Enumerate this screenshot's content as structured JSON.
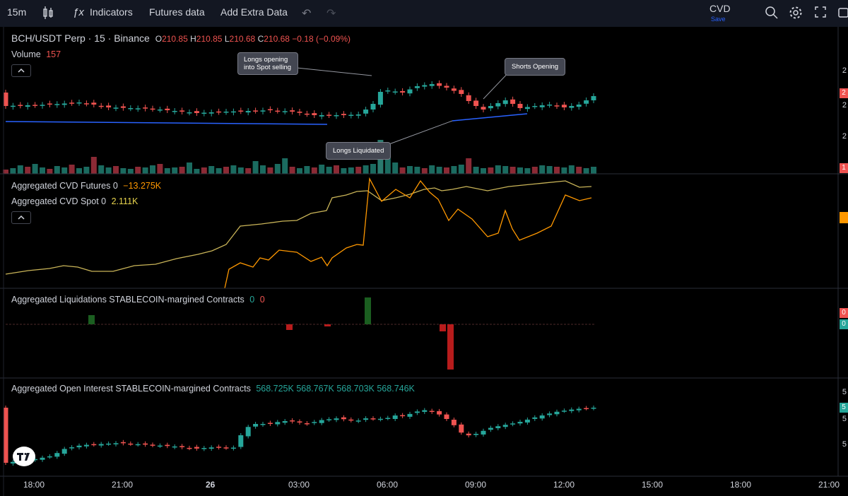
{
  "toolbar": {
    "interval": "15m",
    "indicators": "Indicators",
    "futures_data": "Futures data",
    "add_extra_data": "Add Extra Data",
    "layout_name": "CVD",
    "save_label": "Save"
  },
  "legend": {
    "symbol": "BCH/USDT Perp · 15 · Binance",
    "o_label": "O",
    "o_value": "210.85",
    "h_label": "H",
    "h_value": "210.85",
    "l_label": "L",
    "l_value": "210.68",
    "c_label": "C",
    "c_value": "210.68",
    "change": "−0.18 (−0.09%)",
    "volume_label": "Volume",
    "volume_value": "157"
  },
  "panes": {
    "cvd_futures_label": "Aggregated CVD Futures 0",
    "cvd_futures_value": "−13.275K",
    "cvd_spot_label": "Aggregated CVD Spot 0",
    "cvd_spot_value": "2.111K",
    "liq_label": "Aggregated Liquidations STABLECOIN-margined Contracts",
    "liq_v1": "0",
    "liq_v2": "0",
    "oi_label": "Aggregated Open Interest STABLECOIN-margined Contracts",
    "oi_values": [
      "568.725K",
      "568.767K",
      "568.703K",
      "568.746K"
    ]
  },
  "annotations": {
    "longs_opening": "Longs opening into Spot selling",
    "shorts_opening": "Shorts Opening",
    "longs_liquidated": "Longs Liquidated"
  },
  "time_axis": [
    "18:00",
    "21:00",
    "26",
    "03:00",
    "06:00",
    "09:00",
    "12:00",
    "15:00",
    "18:00",
    "21:00"
  ],
  "right_axis": {
    "price_badge": "2",
    "volume_badge": "1",
    "liq_badge_1": "0",
    "liq_badge_2": "0",
    "oi_badge": "5",
    "price_ticks": [
      "2",
      "2",
      "2"
    ],
    "oi_ticks": [
      "5",
      "5",
      "5"
    ]
  },
  "colors": {
    "up": "#26a69a",
    "down": "#ef5350",
    "up_volume": "#1b6b60",
    "down_volume": "#8b2a35",
    "trendline": "#2962ff",
    "cvd_futures": "#ff9800",
    "cvd_spot": "#c9b458",
    "liq_long": "#1b5e20",
    "liq_short": "#b71c1c",
    "pane_border": "#2a2e39"
  }
}
